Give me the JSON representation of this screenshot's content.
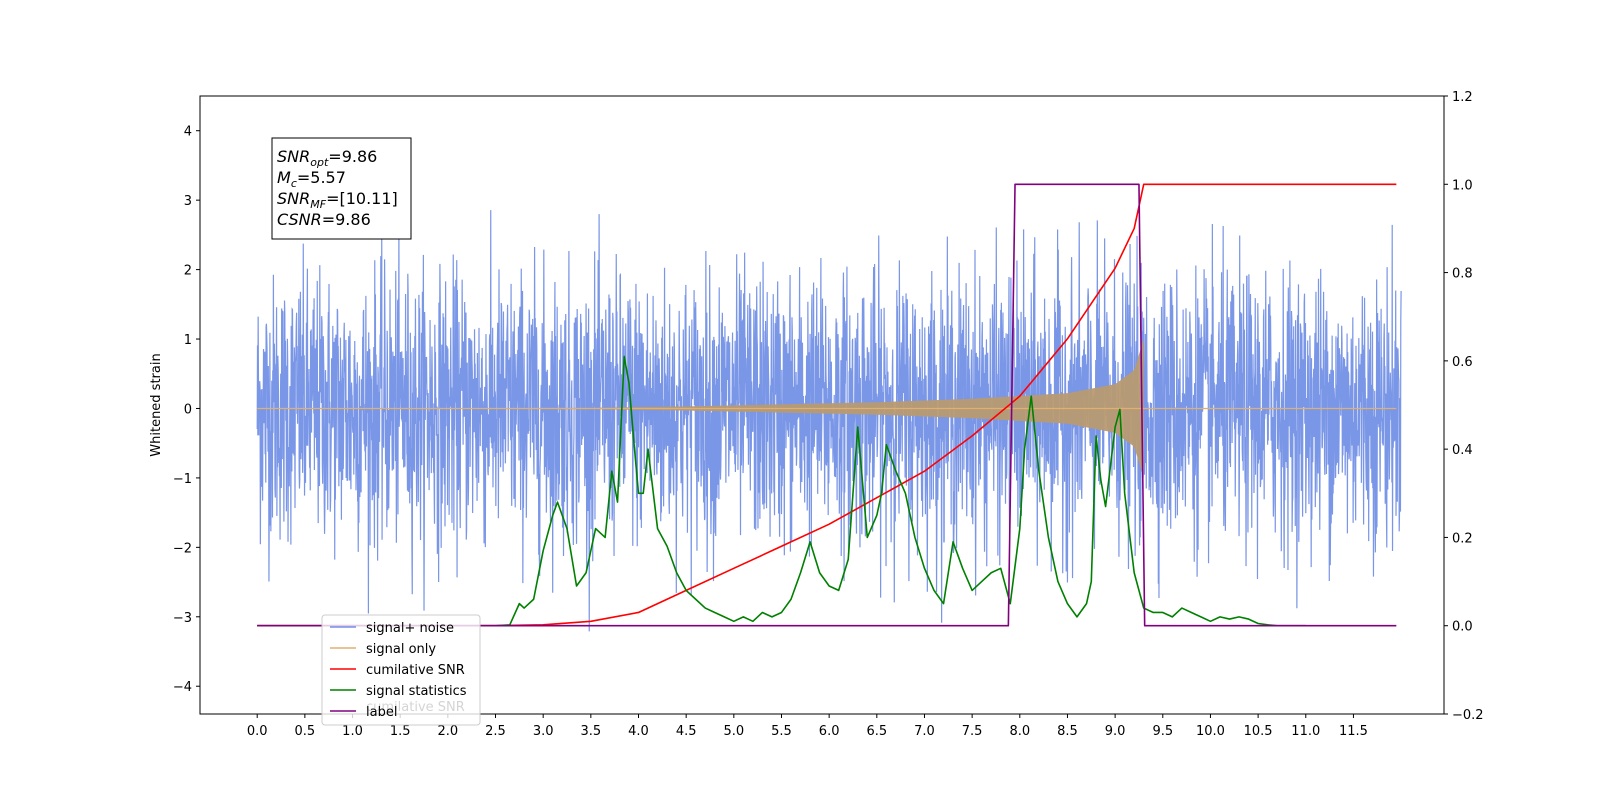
{
  "chart_data": {
    "type": "line",
    "title": "",
    "xlabel": "",
    "ylabel": "Whitened strain",
    "y2label": "",
    "xlim": [
      -0.6,
      12.45
    ],
    "ylim": [
      -4.4,
      4.5
    ],
    "y2lim": [
      -0.2,
      1.2
    ],
    "x_ticks": [
      0.0,
      0.5,
      1.0,
      1.5,
      2.0,
      2.5,
      3.0,
      3.5,
      4.0,
      4.5,
      5.0,
      5.5,
      6.0,
      6.5,
      7.0,
      7.5,
      8.0,
      8.5,
      9.0,
      9.5,
      10.0,
      10.5,
      11.0,
      11.5
    ],
    "x_tick_labels": [
      "0.0",
      "0.5",
      "1.0",
      "1.5",
      "2.0",
      "2.5",
      "3.0",
      "3.5",
      "4.0",
      "4.5",
      "5.0",
      "5.5",
      "6.0",
      "6.5",
      "7.0",
      "7.5",
      "8.0",
      "8.5",
      "9.0",
      "9.5",
      "10.0",
      "10.5",
      "11.0",
      "11.5"
    ],
    "y_ticks": [
      -4,
      -3,
      -2,
      -1,
      0,
      1,
      2,
      3,
      4
    ],
    "y_tick_labels": [
      "−4",
      "−3",
      "−2",
      "−1",
      "0",
      "1",
      "2",
      "3",
      "4"
    ],
    "y2_ticks": [
      -0.2,
      0.0,
      0.2,
      0.4,
      0.6,
      0.8,
      1.0,
      1.2
    ],
    "y2_tick_labels": [
      "−0.2",
      "0.0",
      "0.2",
      "0.4",
      "0.6",
      "0.8",
      "1.0",
      "1.2"
    ],
    "grid": false,
    "legend_position": "lower-left",
    "annotation": {
      "lines": [
        {
          "sym": "SNR",
          "sub": "opt",
          "val": "=9.86"
        },
        {
          "sym": "M",
          "sub": "c",
          "val": "=5.57"
        },
        {
          "sym": "SNR",
          "sub": "MF",
          "val": "=[10.11]"
        },
        {
          "sym": "CSNR",
          "sub": "",
          "val": "=9.86"
        }
      ]
    },
    "series": [
      {
        "name": "signal+ noise",
        "axis": "left",
        "color": "#7390e6",
        "style": "noise",
        "x_range": [
          0.0,
          12.0
        ],
        "envelope": [
          [
            0.0,
            2.3
          ],
          [
            2.7,
            3.9
          ],
          [
            3.5,
            3.0
          ],
          [
            7.0,
            3.2
          ],
          [
            9.55,
            4.1
          ],
          [
            12.0,
            2.6
          ]
        ],
        "typical_amplitude": 1.2
      },
      {
        "name": "signal only",
        "axis": "left",
        "color": "#e0b070",
        "fill_color": "#b89a72",
        "style": "chirp",
        "amplitude": [
          [
            0.0,
            0.0
          ],
          [
            2.0,
            0.005
          ],
          [
            3.5,
            0.01
          ],
          [
            4.5,
            0.03
          ],
          [
            5.5,
            0.06
          ],
          [
            6.5,
            0.09
          ],
          [
            7.5,
            0.14
          ],
          [
            8.0,
            0.18
          ],
          [
            8.5,
            0.22
          ],
          [
            9.0,
            0.35
          ],
          [
            9.2,
            0.55
          ],
          [
            9.3,
            1.0
          ]
        ],
        "chirp_end": 9.3
      },
      {
        "name": "cumilative SNR",
        "axis": "right",
        "color": "#ff0000",
        "x": [
          0.0,
          2.5,
          3.0,
          3.5,
          4.0,
          4.5,
          5.0,
          5.5,
          6.0,
          6.5,
          7.0,
          7.5,
          8.0,
          8.5,
          9.0,
          9.2,
          9.28,
          9.3,
          11.95
        ],
        "y": [
          0.0,
          0.0,
          0.002,
          0.01,
          0.03,
          0.08,
          0.13,
          0.18,
          0.23,
          0.29,
          0.35,
          0.43,
          0.52,
          0.65,
          0.81,
          0.9,
          0.98,
          1.0,
          1.0
        ]
      },
      {
        "name": "signal statistics",
        "axis": "right",
        "color": "#008000",
        "x": [
          0.0,
          2.5,
          2.65,
          2.75,
          2.8,
          2.9,
          3.0,
          3.1,
          3.15,
          3.25,
          3.35,
          3.45,
          3.55,
          3.65,
          3.72,
          3.78,
          3.85,
          3.9,
          3.95,
          4.0,
          4.05,
          4.1,
          4.2,
          4.3,
          4.4,
          4.5,
          4.6,
          4.7,
          4.8,
          4.9,
          5.0,
          5.1,
          5.2,
          5.3,
          5.4,
          5.5,
          5.6,
          5.7,
          5.8,
          5.9,
          6.0,
          6.1,
          6.2,
          6.3,
          6.4,
          6.5,
          6.55,
          6.6,
          6.7,
          6.8,
          6.9,
          7.0,
          7.1,
          7.2,
          7.3,
          7.4,
          7.5,
          7.6,
          7.7,
          7.8,
          7.9,
          8.0,
          8.05,
          8.12,
          8.2,
          8.3,
          8.4,
          8.5,
          8.6,
          8.7,
          8.75,
          8.8,
          8.85,
          8.9,
          9.0,
          9.05,
          9.1,
          9.2,
          9.3,
          9.4,
          9.5,
          9.6,
          9.7,
          9.8,
          9.9,
          10.0,
          10.1,
          10.2,
          10.3,
          10.4,
          10.5,
          10.6,
          10.7,
          11.0
        ],
        "y": [
          0.0,
          0.0,
          0.002,
          0.05,
          0.04,
          0.06,
          0.17,
          0.25,
          0.28,
          0.22,
          0.09,
          0.12,
          0.22,
          0.2,
          0.35,
          0.28,
          0.61,
          0.55,
          0.42,
          0.3,
          0.3,
          0.4,
          0.22,
          0.18,
          0.12,
          0.08,
          0.06,
          0.04,
          0.03,
          0.02,
          0.01,
          0.02,
          0.01,
          0.03,
          0.02,
          0.03,
          0.06,
          0.12,
          0.19,
          0.12,
          0.09,
          0.08,
          0.15,
          0.45,
          0.2,
          0.25,
          0.3,
          0.41,
          0.35,
          0.3,
          0.2,
          0.13,
          0.08,
          0.05,
          0.19,
          0.13,
          0.08,
          0.1,
          0.12,
          0.13,
          0.05,
          0.22,
          0.4,
          0.52,
          0.35,
          0.2,
          0.1,
          0.05,
          0.02,
          0.05,
          0.1,
          0.43,
          0.33,
          0.27,
          0.45,
          0.49,
          0.3,
          0.12,
          0.04,
          0.03,
          0.03,
          0.02,
          0.04,
          0.03,
          0.02,
          0.01,
          0.02,
          0.015,
          0.02,
          0.015,
          0.005,
          0.002,
          0.0,
          0.0
        ]
      },
      {
        "name": "label",
        "axis": "right",
        "color": "#800080",
        "x": [
          0.0,
          7.88,
          7.95,
          9.25,
          9.31,
          11.95
        ],
        "y": [
          0.0,
          0.0,
          1.0,
          1.0,
          0.0,
          0.0
        ]
      }
    ],
    "legend_hidden_text": "cumilative SNR"
  }
}
